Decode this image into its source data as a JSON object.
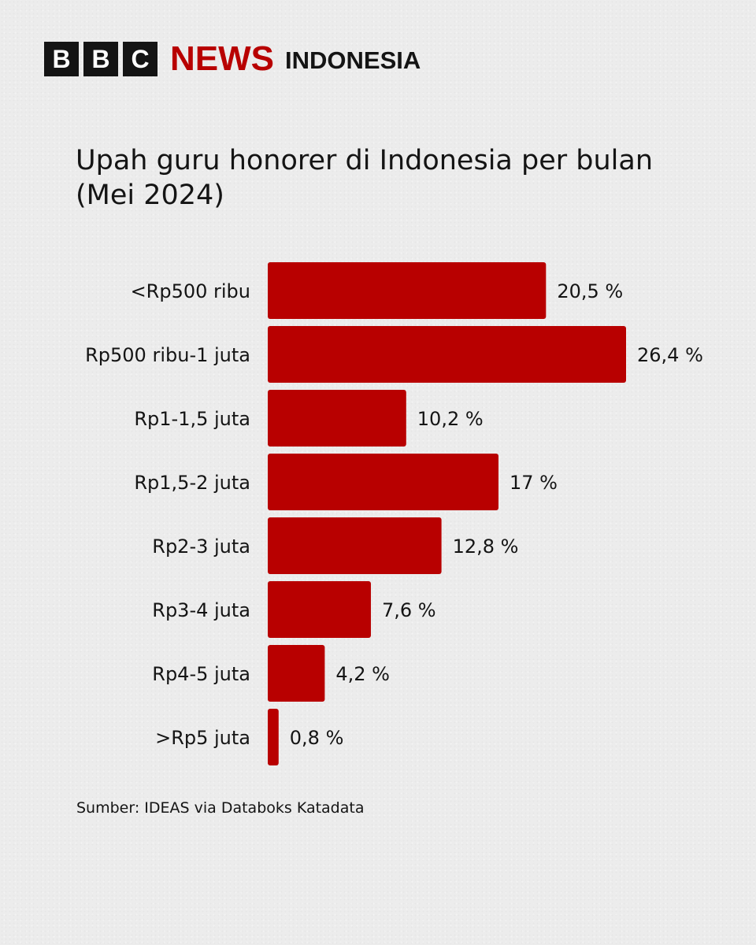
{
  "brand": {
    "letters": [
      "B",
      "B",
      "C"
    ],
    "news": "NEWS",
    "region": "INDONESIA",
    "accent_color": "#b80000"
  },
  "title_lines": [
    "Upah guru honorer di Indonesia per bulan",
    "(Mei 2024)"
  ],
  "source": "Sumber: IDEAS via Databoks Katadata",
  "chart_data": {
    "type": "bar",
    "orientation": "horizontal",
    "title": "Upah guru honorer di Indonesia per bulan (Mei 2024)",
    "categories": [
      "<Rp500 ribu",
      "Rp500 ribu-1 juta",
      "Rp1-1,5 juta",
      "Rp1,5-2 juta",
      "Rp2-3 juta",
      "Rp3-4 juta",
      "Rp4-5 juta",
      ">Rp5 juta"
    ],
    "values": [
      20.5,
      26.4,
      10.2,
      17,
      12.8,
      7.6,
      4.2,
      0.8
    ],
    "value_labels": [
      "20,5 %",
      "26,4 %",
      "10,2 %",
      "17 %",
      "12,8 %",
      "7,6 %",
      "4,2 %",
      "0,8 %"
    ],
    "unit": "%",
    "bar_color": "#b80000",
    "grid": false,
    "legend": "none"
  }
}
